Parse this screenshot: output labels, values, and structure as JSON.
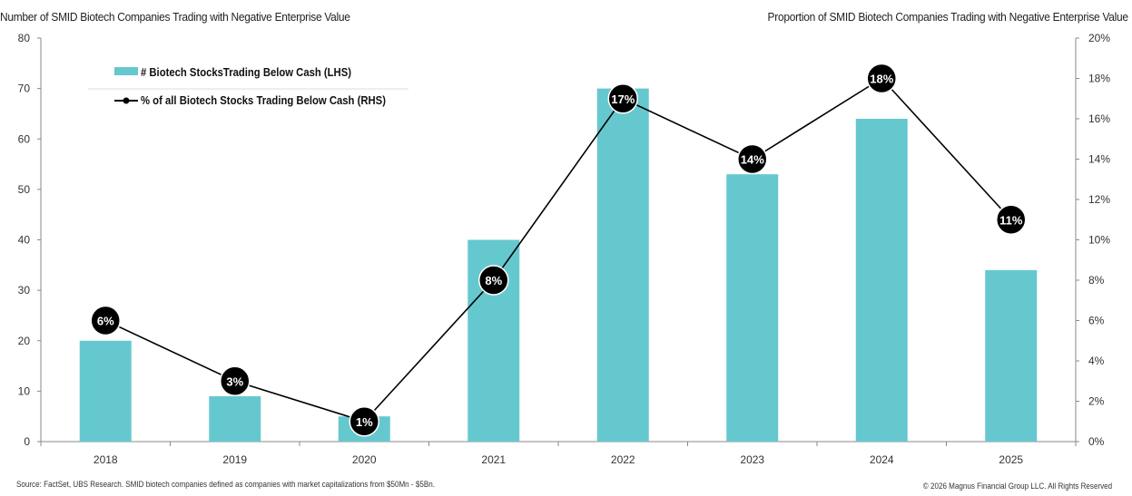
{
  "chart_data": {
    "type": "bar+line",
    "left_title": "Number of SMID Biotech Companies Trading with Negative Enterprise Value",
    "right_title": "Proportion of SMID Biotech Companies Trading with Negative Enterprise Value",
    "categories": [
      "2018",
      "2019",
      "2020",
      "2021",
      "2022",
      "2023",
      "2024",
      "2025"
    ],
    "series": [
      {
        "name": "# Biotech StocksTrading Below Cash (LHS)",
        "type": "bar",
        "axis": "left",
        "color": "#66c8cf",
        "values": [
          20,
          9,
          5,
          40,
          70,
          53,
          64,
          34
        ]
      },
      {
        "name": "% of all Biotech Stocks Trading Below Cash (RHS)",
        "type": "line",
        "axis": "right",
        "color": "#000000",
        "values": [
          6,
          3,
          1,
          8,
          17,
          14,
          18,
          11
        ],
        "labels": [
          "6%",
          "3%",
          "1%",
          "8%",
          "17%",
          "14%",
          "18%",
          "11%"
        ]
      }
    ],
    "y_left": {
      "range": [
        0,
        80
      ],
      "ticks": [
        "0",
        "10",
        "20",
        "30",
        "40",
        "50",
        "60",
        "70",
        "80"
      ]
    },
    "y_right": {
      "range": [
        0,
        20
      ],
      "ticks": [
        "0%",
        "2%",
        "4%",
        "6%",
        "8%",
        "10%",
        "12%",
        "14%",
        "16%",
        "18%",
        "20%"
      ]
    },
    "grid": false,
    "legend_position": "top-left"
  },
  "footer": {
    "source": "Source: FactSet, UBS Research. SMID biotech companies defined as companies with market capitalizations from $50Mn - $5Bn.",
    "copyright": "© 2026 Magnus Financial Group LLC. All Rights Reserved"
  }
}
